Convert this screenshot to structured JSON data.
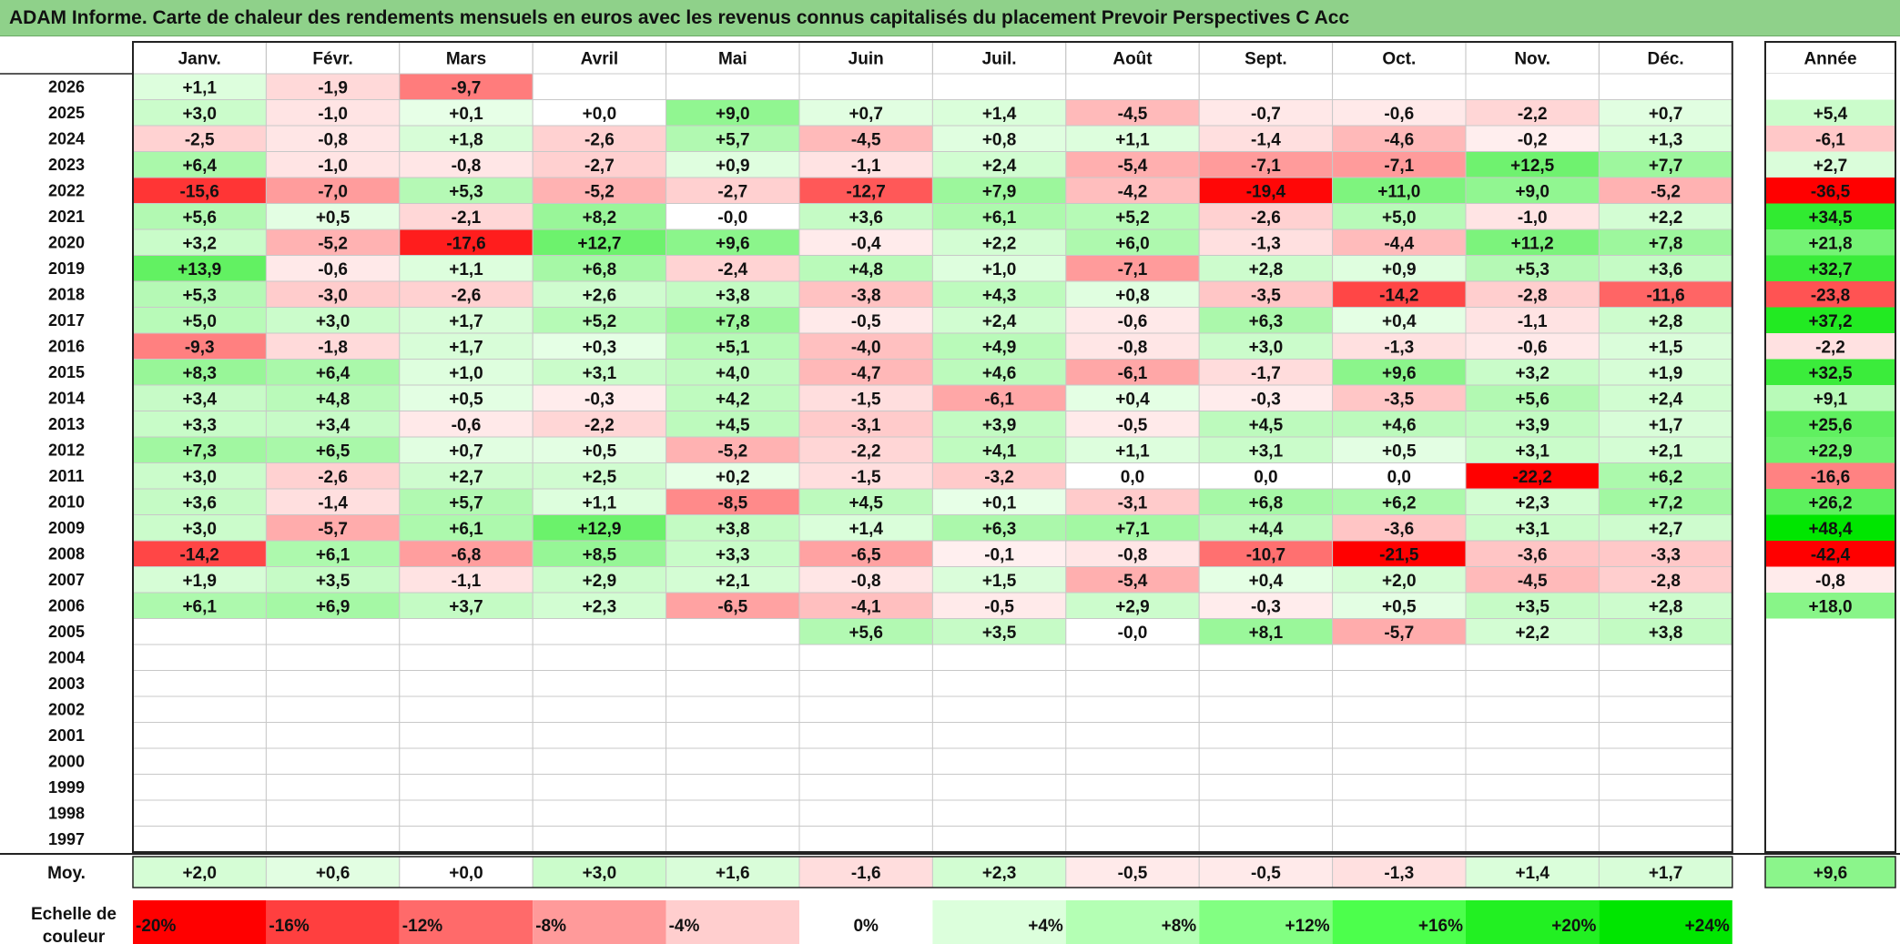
{
  "title": "ADAM Informe. Carte de chaleur des rendements mensuels en euros avec les revenus connus capitalisés du placement Prevoir Perspectives C Acc",
  "chart_data": {
    "type": "heatmap",
    "title": "ADAM Informe. Carte de chaleur des rendements mensuels en euros avec les revenus connus capitalisés du placement Prevoir Perspectives C Acc",
    "months": [
      "Janv.",
      "Févr.",
      "Mars",
      "Avril",
      "Mai",
      "Juin",
      "Juil.",
      "Août",
      "Sept.",
      "Oct.",
      "Nov.",
      "Déc."
    ],
    "annual_label": "Année",
    "rows": [
      {
        "year": "2026",
        "values": [
          "+1,1",
          "-1,9",
          "-9,7",
          "",
          "",
          "",
          "",
          "",
          "",
          "",
          "",
          ""
        ],
        "annual": ""
      },
      {
        "year": "2025",
        "values": [
          "+3,0",
          "-1,0",
          "+0,1",
          "+0,0",
          "+9,0",
          "+0,7",
          "+1,4",
          "-4,5",
          "-0,7",
          "-0,6",
          "-2,2",
          "+0,7"
        ],
        "annual": "+5,4"
      },
      {
        "year": "2024",
        "values": [
          "-2,5",
          "-0,8",
          "+1,8",
          "-2,6",
          "+5,7",
          "-4,5",
          "+0,8",
          "+1,1",
          "-1,4",
          "-4,6",
          "-0,2",
          "+1,3"
        ],
        "annual": "-6,1"
      },
      {
        "year": "2023",
        "values": [
          "+6,4",
          "-1,0",
          "-0,8",
          "-2,7",
          "+0,9",
          "-1,1",
          "+2,4",
          "-5,4",
          "-7,1",
          "-7,1",
          "+12,5",
          "+7,7"
        ],
        "annual": "+2,7"
      },
      {
        "year": "2022",
        "values": [
          "-15,6",
          "-7,0",
          "+5,3",
          "-5,2",
          "-2,7",
          "-12,7",
          "+7,9",
          "-4,2",
          "-19,4",
          "+11,0",
          "+9,0",
          "-5,2"
        ],
        "annual": "-36,5"
      },
      {
        "year": "2021",
        "values": [
          "+5,6",
          "+0,5",
          "-2,1",
          "+8,2",
          "-0,0",
          "+3,6",
          "+6,1",
          "+5,2",
          "-2,6",
          "+5,0",
          "-1,0",
          "+2,2"
        ],
        "annual": "+34,5"
      },
      {
        "year": "2020",
        "values": [
          "+3,2",
          "-5,2",
          "-17,6",
          "+12,7",
          "+9,6",
          "-0,4",
          "+2,2",
          "+6,0",
          "-1,3",
          "-4,4",
          "+11,2",
          "+7,8"
        ],
        "annual": "+21,8"
      },
      {
        "year": "2019",
        "values": [
          "+13,9",
          "-0,6",
          "+1,1",
          "+6,8",
          "-2,4",
          "+4,8",
          "+1,0",
          "-7,1",
          "+2,8",
          "+0,9",
          "+5,3",
          "+3,6"
        ],
        "annual": "+32,7"
      },
      {
        "year": "2018",
        "values": [
          "+5,3",
          "-3,0",
          "-2,6",
          "+2,6",
          "+3,8",
          "-3,8",
          "+4,3",
          "+0,8",
          "-3,5",
          "-14,2",
          "-2,8",
          "-11,6"
        ],
        "annual": "-23,8"
      },
      {
        "year": "2017",
        "values": [
          "+5,0",
          "+3,0",
          "+1,7",
          "+5,2",
          "+7,8",
          "-0,5",
          "+2,4",
          "-0,6",
          "+6,3",
          "+0,4",
          "-1,1",
          "+2,8"
        ],
        "annual": "+37,2"
      },
      {
        "year": "2016",
        "values": [
          "-9,3",
          "-1,8",
          "+1,7",
          "+0,3",
          "+5,1",
          "-4,0",
          "+4,9",
          "-0,8",
          "+3,0",
          "-1,3",
          "-0,6",
          "+1,5"
        ],
        "annual": "-2,2"
      },
      {
        "year": "2015",
        "values": [
          "+8,3",
          "+6,4",
          "+1,0",
          "+3,1",
          "+4,0",
          "-4,7",
          "+4,6",
          "-6,1",
          "-1,7",
          "+9,6",
          "+3,2",
          "+1,9"
        ],
        "annual": "+32,5"
      },
      {
        "year": "2014",
        "values": [
          "+3,4",
          "+4,8",
          "+0,5",
          "-0,3",
          "+4,2",
          "-1,5",
          "-6,1",
          "+0,4",
          "-0,3",
          "-3,5",
          "+5,6",
          "+2,4"
        ],
        "annual": "+9,1"
      },
      {
        "year": "2013",
        "values": [
          "+3,3",
          "+3,4",
          "-0,6",
          "-2,2",
          "+4,5",
          "-3,1",
          "+3,9",
          "-0,5",
          "+4,5",
          "+4,6",
          "+3,9",
          "+1,7"
        ],
        "annual": "+25,6"
      },
      {
        "year": "2012",
        "values": [
          "+7,3",
          "+6,5",
          "+0,7",
          "+0,5",
          "-5,2",
          "-2,2",
          "+4,1",
          "+1,1",
          "+3,1",
          "+0,5",
          "+3,1",
          "+2,1"
        ],
        "annual": "+22,9"
      },
      {
        "year": "2011",
        "values": [
          "+3,0",
          "-2,6",
          "+2,7",
          "+2,5",
          "+0,2",
          "-1,5",
          "-3,2",
          "0,0",
          "0,0",
          "0,0",
          "-22,2",
          "+6,2"
        ],
        "annual": "-16,6"
      },
      {
        "year": "2010",
        "values": [
          "+3,6",
          "-1,4",
          "+5,7",
          "+1,1",
          "-8,5",
          "+4,5",
          "+0,1",
          "-3,1",
          "+6,8",
          "+6,2",
          "+2,3",
          "+7,2"
        ],
        "annual": "+26,2"
      },
      {
        "year": "2009",
        "values": [
          "+3,0",
          "-5,7",
          "+6,1",
          "+12,9",
          "+3,8",
          "+1,4",
          "+6,3",
          "+7,1",
          "+4,4",
          "-3,6",
          "+3,1",
          "+2,7"
        ],
        "annual": "+48,4"
      },
      {
        "year": "2008",
        "values": [
          "-14,2",
          "+6,1",
          "-6,8",
          "+8,5",
          "+3,3",
          "-6,5",
          "-0,1",
          "-0,8",
          "-10,7",
          "-21,5",
          "-3,6",
          "-3,3"
        ],
        "annual": "-42,4"
      },
      {
        "year": "2007",
        "values": [
          "+1,9",
          "+3,5",
          "-1,1",
          "+2,9",
          "+2,1",
          "-0,8",
          "+1,5",
          "-5,4",
          "+0,4",
          "+2,0",
          "-4,5",
          "-2,8"
        ],
        "annual": "-0,8"
      },
      {
        "year": "2006",
        "values": [
          "+6,1",
          "+6,9",
          "+3,7",
          "+2,3",
          "-6,5",
          "-4,1",
          "-0,5",
          "+2,9",
          "-0,3",
          "+0,5",
          "+3,5",
          "+2,8"
        ],
        "annual": "+18,0"
      },
      {
        "year": "2005",
        "values": [
          "",
          "",
          "",
          "",
          "",
          "+5,6",
          "+3,5",
          "-0,0",
          "+8,1",
          "-5,7",
          "+2,2",
          "+3,8"
        ],
        "annual": ""
      },
      {
        "year": "2004",
        "values": [
          "",
          "",
          "",
          "",
          "",
          "",
          "",
          "",
          "",
          "",
          "",
          ""
        ],
        "annual": ""
      },
      {
        "year": "2003",
        "values": [
          "",
          "",
          "",
          "",
          "",
          "",
          "",
          "",
          "",
          "",
          "",
          ""
        ],
        "annual": ""
      },
      {
        "year": "2002",
        "values": [
          "",
          "",
          "",
          "",
          "",
          "",
          "",
          "",
          "",
          "",
          "",
          ""
        ],
        "annual": ""
      },
      {
        "year": "2001",
        "values": [
          "",
          "",
          "",
          "",
          "",
          "",
          "",
          "",
          "",
          "",
          "",
          ""
        ],
        "annual": ""
      },
      {
        "year": "2000",
        "values": [
          "",
          "",
          "",
          "",
          "",
          "",
          "",
          "",
          "",
          "",
          "",
          ""
        ],
        "annual": ""
      },
      {
        "year": "1999",
        "values": [
          "",
          "",
          "",
          "",
          "",
          "",
          "",
          "",
          "",
          "",
          "",
          ""
        ],
        "annual": ""
      },
      {
        "year": "1998",
        "values": [
          "",
          "",
          "",
          "",
          "",
          "",
          "",
          "",
          "",
          "",
          "",
          ""
        ],
        "annual": ""
      },
      {
        "year": "1997",
        "values": [
          "",
          "",
          "",
          "",
          "",
          "",
          "",
          "",
          "",
          "",
          "",
          ""
        ],
        "annual": ""
      }
    ],
    "average": {
      "label": "Moy.",
      "values": [
        "+2,0",
        "+0,6",
        "+0,0",
        "+3,0",
        "+1,6",
        "-1,6",
        "+2,3",
        "-0,5",
        "-0,5",
        "-1,3",
        "+1,4",
        "+1,7"
      ],
      "annual": "+9,6"
    },
    "scale": {
      "label_line1": "Echelle de",
      "label_line2": "couleur",
      "steps": [
        "-20%",
        "-16%",
        "-12%",
        "-8%",
        "-4%",
        "0%",
        "+4%",
        "+8%",
        "+12%",
        "+16%",
        "+20%",
        "+24%"
      ],
      "step_values": [
        -20,
        -16,
        -12,
        -8,
        -4,
        0,
        4,
        8,
        12,
        16,
        20,
        24
      ],
      "colors": [
        "#ff0000",
        "#ff3f3f",
        "#ff6a6a",
        "#ff9a9a",
        "#ffcece",
        "#ffffff",
        "#dcffdc",
        "#b4ffb4",
        "#82ff82",
        "#4cff4c",
        "#22f022",
        "#00e600"
      ]
    }
  }
}
